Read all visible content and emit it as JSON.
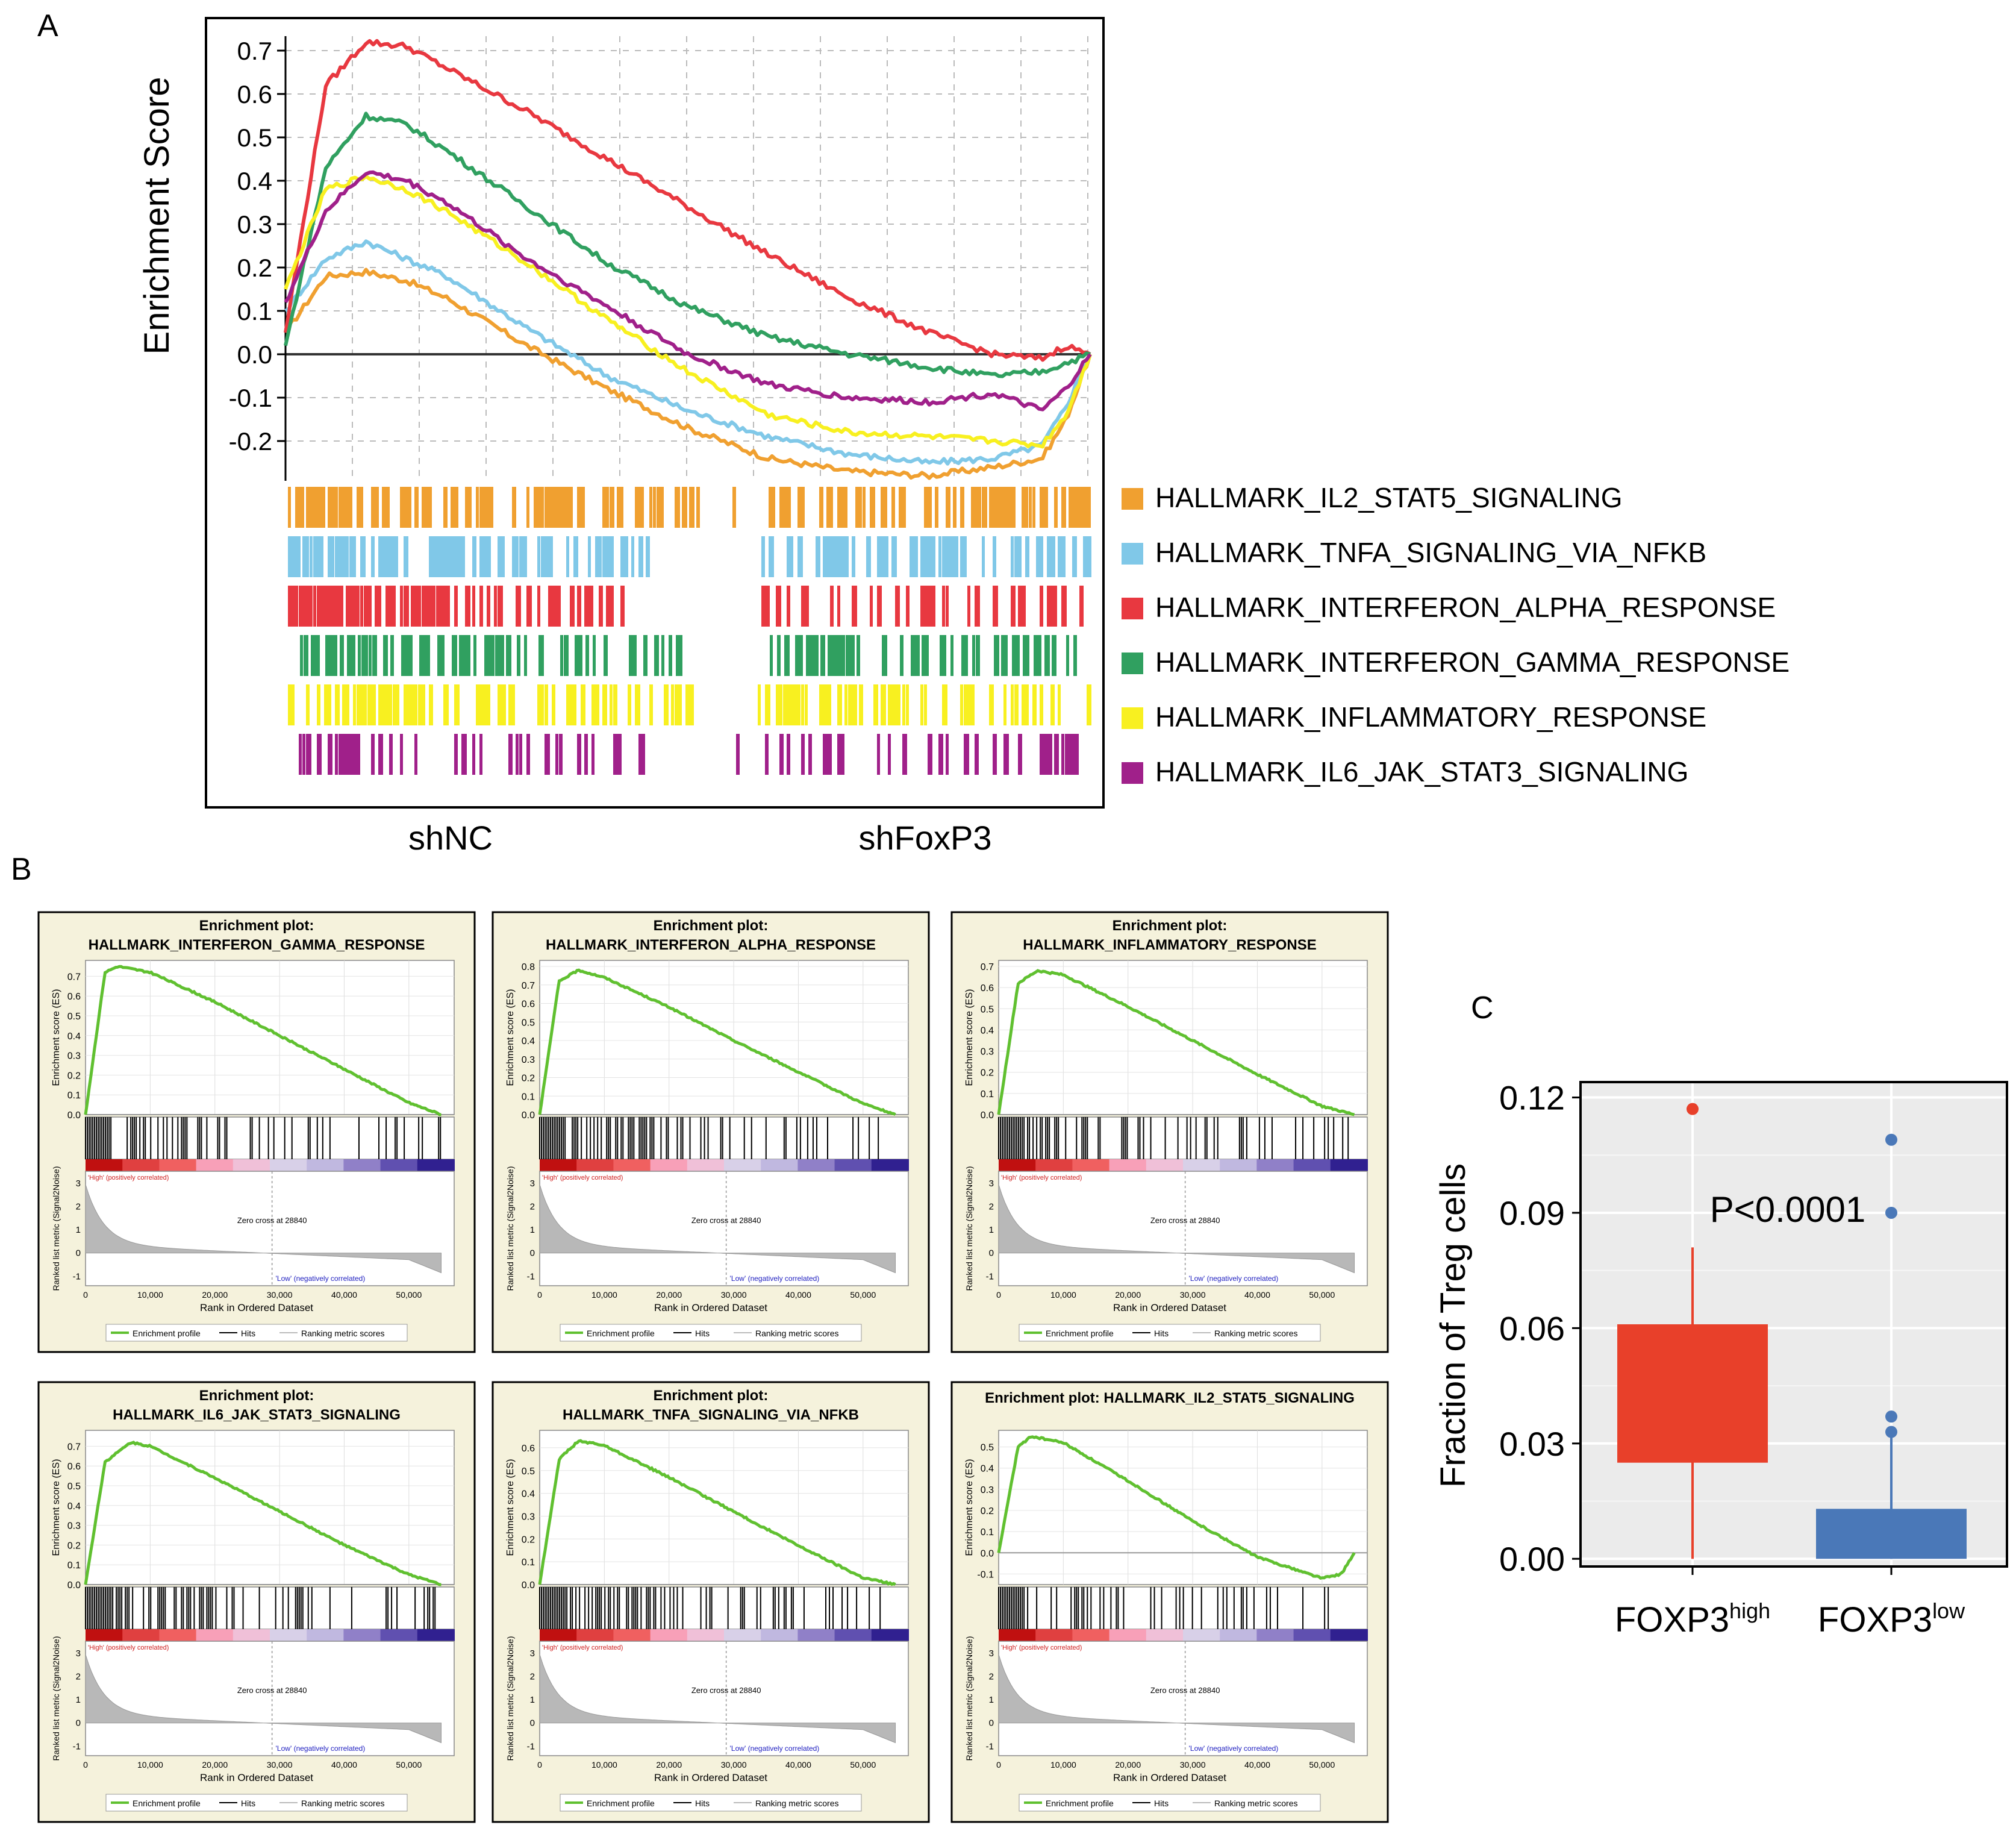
{
  "colors": {
    "orange": "#F0A030",
    "blue": "#80C8E8",
    "red": "#E83840",
    "green": "#30A060",
    "yellow": "#F8F020",
    "purple": "#A0208A",
    "gsea_green": "#60C030",
    "gsea_panel_bg": "#F5F2DC",
    "box_high": "#E8402A",
    "box_low": "#4A78B8",
    "boxplot_bg": "#EBEBEB"
  },
  "panel_a": {
    "label": "A",
    "ylabel": "Enrichment Score",
    "yticks": [
      "0.7",
      "0.6",
      "0.5",
      "0.4",
      "0.3",
      "0.2",
      "0.1",
      "0.0",
      "-0.1",
      "-0.2"
    ],
    "x_left_label": "shNC",
    "x_right_label": "shFoxP3",
    "legend": [
      "HALLMARK_IL2_STAT5_SIGNALING",
      "HALLMARK_TNFA_SIGNALING_VIA_NFKB",
      "HALLMARK_INTERFERON_ALPHA_RESPONSE",
      "HALLMARK_INTERFERON_GAMMA_RESPONSE",
      "HALLMARK_INFLAMMATORY_RESPONSE",
      "HALLMARK_IL6_JAK_STAT3_SIGNALING"
    ]
  },
  "panel_b": {
    "label": "B",
    "common": {
      "es_axis_label": "Enrichment score (ES)",
      "metric_axis_label": "Ranked list metric (Signal2Noise)",
      "x_axis_label": "Rank in Ordered Dataset",
      "high_label": "'High' (positively correlated)",
      "low_label": "'Low' (negatively correlated)",
      "zero_cross": "Zero cross at 28840",
      "xticks": [
        "0",
        "10,000",
        "20,000",
        "30,000",
        "40,000",
        "50,000"
      ],
      "metric_ticks": [
        "3",
        "2",
        "1",
        "0",
        "-1"
      ],
      "legend_profile": "Enrichment profile",
      "legend_hits": "Hits",
      "legend_ranking": "Ranking metric scores"
    },
    "plots": [
      {
        "title1": "Enrichment plot:",
        "title2": "HALLMARK_INTERFERON_GAMMA_RESPONSE",
        "yticks": [
          "0.7",
          "0.6",
          "0.5",
          "0.4",
          "0.3",
          "0.2",
          "0.1",
          "0.0"
        ]
      },
      {
        "title1": "Enrichment plot:",
        "title2": "HALLMARK_INTERFERON_ALPHA_RESPONSE",
        "yticks": [
          "0.8",
          "0.7",
          "0.6",
          "0.5",
          "0.4",
          "0.3",
          "0.2",
          "0.1",
          "0.0"
        ]
      },
      {
        "title1": "Enrichment plot:",
        "title2": "HALLMARK_INFLAMMATORY_RESPONSE",
        "yticks": [
          "0.7",
          "0.6",
          "0.5",
          "0.4",
          "0.3",
          "0.2",
          "0.1",
          "0.0"
        ]
      },
      {
        "title1": "Enrichment plot:",
        "title2": "HALLMARK_IL6_JAK_STAT3_SIGNALING",
        "yticks": [
          "0.7",
          "0.6",
          "0.5",
          "0.4",
          "0.3",
          "0.2",
          "0.1",
          "0.0"
        ]
      },
      {
        "title1": "Enrichment plot:",
        "title2": "HALLMARK_TNFA_SIGNALING_VIA_NFKB",
        "yticks": [
          "0.6",
          "0.5",
          "0.4",
          "0.3",
          "0.2",
          "0.1",
          "0.0"
        ]
      },
      {
        "title1": "Enrichment plot: HALLMARK_IL2_STAT5_SIGNALING",
        "title2": "",
        "yticks": [
          "0.5",
          "0.4",
          "0.3",
          "0.2",
          "0.1",
          "0.0",
          "-0.1"
        ]
      }
    ]
  },
  "panel_c": {
    "label": "C",
    "ylabel": "Fraction of Treg cells",
    "yticks": [
      "0.12",
      "0.09",
      "0.06",
      "0.03",
      "0.00"
    ],
    "pvalue": "P<0.0001",
    "cat1_base": "FOXP3",
    "cat1_sup": "high",
    "cat2_base": "FOXP3",
    "cat2_sup": "low"
  },
  "chart_data": [
    {
      "type": "line",
      "ylabel": "Enrichment Score",
      "ylim": [
        -0.25,
        0.75
      ],
      "x": [
        0,
        0.05,
        0.1,
        0.15,
        0.2,
        0.3,
        0.4,
        0.5,
        0.6,
        0.7,
        0.8,
        0.88,
        0.94,
        0.97,
        1.0
      ],
      "series": [
        {
          "name": "HALLMARK_IL2_STAT5_SIGNALING",
          "values": [
            0.05,
            0.18,
            0.19,
            0.17,
            0.13,
            0.02,
            -0.08,
            -0.17,
            -0.24,
            -0.27,
            -0.28,
            -0.26,
            -0.24,
            -0.15,
            0.0
          ]
        },
        {
          "name": "HALLMARK_TNFA_SIGNALING_VIA_NFKB",
          "values": [
            0.1,
            0.22,
            0.26,
            0.22,
            0.18,
            0.06,
            -0.05,
            -0.13,
            -0.19,
            -0.23,
            -0.25,
            -0.24,
            -0.21,
            -0.12,
            0.0
          ]
        },
        {
          "name": "HALLMARK_INTERFERON_ALPHA_RESPONSE",
          "values": [
            0.05,
            0.62,
            0.72,
            0.71,
            0.66,
            0.56,
            0.45,
            0.34,
            0.23,
            0.13,
            0.05,
            0.0,
            -0.01,
            0.02,
            0.0
          ]
        },
        {
          "name": "HALLMARK_INTERFERON_GAMMA_RESPONSE",
          "values": [
            0.02,
            0.43,
            0.55,
            0.53,
            0.47,
            0.34,
            0.21,
            0.11,
            0.04,
            0.0,
            -0.03,
            -0.05,
            -0.04,
            -0.02,
            0.0
          ]
        },
        {
          "name": "HALLMARK_INFLAMMATORY_RESPONSE",
          "values": [
            0.15,
            0.38,
            0.41,
            0.38,
            0.33,
            0.21,
            0.08,
            -0.04,
            -0.14,
            -0.18,
            -0.19,
            -0.2,
            -0.21,
            -0.14,
            0.0
          ]
        },
        {
          "name": "HALLMARK_IL6_JAK_STAT3_SIGNALING",
          "values": [
            0.12,
            0.33,
            0.42,
            0.4,
            0.35,
            0.22,
            0.11,
            0.0,
            -0.07,
            -0.1,
            -0.11,
            -0.09,
            -0.13,
            -0.08,
            0.0
          ]
        }
      ]
    },
    {
      "type": "line",
      "title": "HALLMARK_INTERFERON_GAMMA_RESPONSE",
      "ylabel": "Enrichment score (ES)",
      "xlabel": "Rank in Ordered Dataset",
      "x": [
        0,
        3000,
        5000,
        10000,
        20000,
        30000,
        40000,
        50000,
        55000
      ],
      "values": [
        0.0,
        0.72,
        0.75,
        0.72,
        0.57,
        0.4,
        0.23,
        0.06,
        0.0
      ]
    },
    {
      "type": "line",
      "title": "HALLMARK_INTERFERON_ALPHA_RESPONSE",
      "ylabel": "Enrichment score (ES)",
      "xlabel": "Rank in Ordered Dataset",
      "x": [
        0,
        3000,
        6000,
        10000,
        20000,
        30000,
        40000,
        50000,
        55000
      ],
      "values": [
        0.0,
        0.72,
        0.78,
        0.74,
        0.58,
        0.4,
        0.23,
        0.06,
        0.0
      ]
    },
    {
      "type": "line",
      "title": "HALLMARK_INFLAMMATORY_RESPONSE",
      "ylabel": "Enrichment score (ES)",
      "xlabel": "Rank in Ordered Dataset",
      "x": [
        0,
        3000,
        6000,
        10000,
        20000,
        30000,
        40000,
        50000,
        55000
      ],
      "values": [
        0.0,
        0.62,
        0.68,
        0.66,
        0.51,
        0.35,
        0.19,
        0.04,
        0.0
      ]
    },
    {
      "type": "line",
      "title": "HALLMARK_IL6_JAK_STAT3_SIGNALING",
      "ylabel": "Enrichment score (ES)",
      "xlabel": "Rank in Ordered Dataset",
      "x": [
        0,
        3000,
        7000,
        10000,
        20000,
        30000,
        40000,
        50000,
        55000
      ],
      "values": [
        0.0,
        0.62,
        0.72,
        0.7,
        0.54,
        0.37,
        0.2,
        0.05,
        0.0
      ]
    },
    {
      "type": "line",
      "title": "HALLMARK_TNFA_SIGNALING_VIA_NFKB",
      "ylabel": "Enrichment score (ES)",
      "xlabel": "Rank in Ordered Dataset",
      "x": [
        0,
        3000,
        6000,
        10000,
        20000,
        30000,
        40000,
        50000,
        55000
      ],
      "values": [
        0.0,
        0.55,
        0.63,
        0.61,
        0.47,
        0.32,
        0.17,
        0.03,
        0.0
      ]
    },
    {
      "type": "line",
      "title": "HALLMARK_IL2_STAT5_SIGNALING",
      "ylabel": "Enrichment score (ES)",
      "xlabel": "Rank in Ordered Dataset",
      "x": [
        0,
        3000,
        5000,
        10000,
        20000,
        30000,
        40000,
        50000,
        53000,
        55000
      ],
      "values": [
        0.0,
        0.5,
        0.55,
        0.52,
        0.34,
        0.15,
        -0.02,
        -0.12,
        -0.1,
        0.0
      ]
    },
    {
      "type": "box",
      "ylabel": "Fraction of Treg cells",
      "ylim": [
        -0.002,
        0.124
      ],
      "categories": [
        "FOXP3high",
        "FOXP3low"
      ],
      "boxes": [
        {
          "category": "FOXP3high",
          "whisker_low": 0.0,
          "q1": 0.025,
          "q3": 0.061,
          "whisker_high": 0.081,
          "outliers": [
            0.117
          ]
        },
        {
          "category": "FOXP3low",
          "whisker_low": 0.0,
          "q1": 0.0,
          "q3": 0.013,
          "whisker_high": 0.032,
          "outliers": [
            0.033,
            0.037,
            0.09,
            0.109
          ]
        }
      ],
      "annotation": "P<0.0001"
    }
  ]
}
